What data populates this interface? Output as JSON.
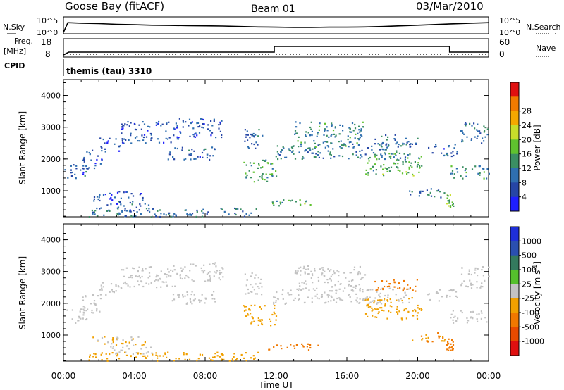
{
  "header": {
    "title": "Goose Bay (fitACF)",
    "beam": "Beam 01",
    "date": "03/Mar/2010",
    "cpid": "themis (tau) 3310"
  },
  "panels": {
    "noise": {
      "left_label": "N.Sky",
      "right_label": "N.Search",
      "left_ticks": [
        "10^5",
        "10^0"
      ],
      "right_ticks": [
        "10^5",
        "10^0"
      ]
    },
    "freq": {
      "left_label_1": "Freq.",
      "left_label_2": "[MHz]",
      "cpid_label": "CPID",
      "right_label": "Nave",
      "left_ticks": [
        "18",
        "8"
      ],
      "right_ticks": [
        "60",
        "0"
      ]
    }
  },
  "colors": {
    "power": [
      "#1f1fff",
      "#2646a6",
      "#2f6fb0",
      "#3b8f63",
      "#5fc22f",
      "#c8dd2a",
      "#f5a800",
      "#f07a00",
      "#e01010"
    ],
    "velocity": [
      "#1f2fd8",
      "#2a4fb0",
      "#347a5e",
      "#55c02c",
      "#c3c3c3",
      "#f0a000",
      "#f07800",
      "#e84a00",
      "#e01010"
    ],
    "ground_scatter": "#c2c2c2"
  },
  "chart_data": [
    {
      "type": "line",
      "name": "noise",
      "x": [
        0.0,
        0.25,
        1,
        2,
        3,
        4,
        5,
        6,
        7,
        8,
        9,
        10,
        11,
        12,
        13,
        14,
        15,
        16,
        17,
        18,
        19,
        20,
        21,
        22,
        23,
        24
      ],
      "series": [
        {
          "values": [
            0.0,
            4.3,
            4.1,
            3.9,
            3.6,
            3.4,
            3.2,
            3.1,
            3.0,
            2.9,
            2.8,
            2.6,
            2.4,
            2.3,
            2.2,
            2.2,
            2.3,
            2.3,
            2.4,
            2.6,
            2.9,
            3.2,
            3.5,
            3.8,
            4.1,
            4.3
          ]
        }
      ]
    },
    {
      "type": "line",
      "name": "frequency",
      "x": [
        0.0,
        0.3,
        11.9,
        11.9,
        21.8,
        21.8,
        24
      ],
      "series": [
        {
          "values": [
            8.0,
            10.0,
            10.0,
            14.0,
            14.0,
            10.0,
            10.0
          ]
        }
      ]
    },
    {
      "type": "heatmap",
      "name": "power",
      "xlabel": "",
      "ylabel": "Slant Range [km]",
      "x_ticks": [
        "00:00",
        "04:00",
        "08:00",
        "12:00",
        "16:00",
        "20:00",
        "00:00"
      ],
      "y_ticks": [
        1000,
        2000,
        3000,
        4000
      ],
      "xlim": [
        0,
        24
      ],
      "ylim": [
        180,
        4500
      ],
      "colorbar": {
        "label": "Power [dB]",
        "ticks": [
          "4",
          "8",
          "12",
          "16",
          "20",
          "24",
          "28"
        ]
      },
      "regions": [
        {
          "t0": 0.0,
          "t1": 1.3,
          "r0": 1400,
          "r1": 1900,
          "v": 7
        },
        {
          "t0": 1.0,
          "t1": 2.2,
          "r0": 1700,
          "r1": 2300,
          "v": 7
        },
        {
          "t0": 2.0,
          "t1": 3.4,
          "r0": 2250,
          "r1": 2700,
          "v": 6
        },
        {
          "t0": 1.6,
          "t1": 4.6,
          "r0": 700,
          "r1": 1000,
          "v": 6
        },
        {
          "t0": 2.4,
          "t1": 5.0,
          "r0": 400,
          "r1": 700,
          "v": 7
        },
        {
          "t0": 1.4,
          "t1": 11.0,
          "r0": 200,
          "r1": 480,
          "v": 9
        },
        {
          "t0": 3.2,
          "t1": 6.6,
          "r0": 2500,
          "r1": 3200,
          "v": 6
        },
        {
          "t0": 5.8,
          "t1": 8.6,
          "r0": 2000,
          "r1": 2400,
          "v": 7
        },
        {
          "t0": 6.5,
          "t1": 9.0,
          "r0": 2700,
          "r1": 3300,
          "v": 6
        },
        {
          "t0": 10.1,
          "t1": 12.0,
          "r0": 1300,
          "r1": 2000,
          "v": 13
        },
        {
          "t0": 10.2,
          "t1": 11.3,
          "r0": 2300,
          "r1": 3000,
          "v": 8
        },
        {
          "t0": 11.5,
          "t1": 14.4,
          "r0": 550,
          "r1": 750,
          "v": 14
        },
        {
          "t0": 11.8,
          "t1": 19.5,
          "r0": 2000,
          "r1": 2500,
          "v": 10
        },
        {
          "t0": 13.0,
          "t1": 17.0,
          "r0": 2400,
          "r1": 3200,
          "v": 11
        },
        {
          "t0": 17.0,
          "t1": 20.2,
          "r0": 1500,
          "r1": 2200,
          "v": 14
        },
        {
          "t0": 17.5,
          "t1": 20.0,
          "r0": 2400,
          "r1": 2800,
          "v": 8
        },
        {
          "t0": 19.5,
          "t1": 21.5,
          "r0": 800,
          "r1": 1100,
          "v": 8
        },
        {
          "t0": 20.5,
          "t1": 22.2,
          "r0": 2100,
          "r1": 2500,
          "v": 7
        },
        {
          "t0": 21.6,
          "t1": 22.0,
          "r0": 500,
          "r1": 900,
          "v": 16
        },
        {
          "t0": 21.8,
          "t1": 24.0,
          "r0": 1400,
          "r1": 1800,
          "v": 11
        },
        {
          "t0": 22.4,
          "t1": 24.0,
          "r0": 2500,
          "r1": 3200,
          "v": 8
        }
      ]
    },
    {
      "type": "heatmap",
      "name": "velocity",
      "xlabel": "Time UT",
      "ylabel": "Slant Range [km]",
      "x_ticks": [
        "00:00",
        "04:00",
        "08:00",
        "12:00",
        "16:00",
        "20:00",
        "00:00"
      ],
      "y_ticks": [
        1000,
        2000,
        3000,
        4000
      ],
      "xlim": [
        0,
        24
      ],
      "ylim": [
        180,
        4500
      ],
      "colorbar": {
        "label": "Velocity  [m s",
        "label_sup": "-1",
        "label_end": "]",
        "ticks": [
          "1000",
          "500",
          "100",
          "25",
          "-25",
          "-100",
          "-500",
          "-1000"
        ]
      },
      "regions": [
        {
          "t0": 0.0,
          "t1": 1.3,
          "r0": 1400,
          "r1": 1900,
          "v": 0
        },
        {
          "t0": 1.0,
          "t1": 2.2,
          "r0": 1700,
          "r1": 2300,
          "v": 0
        },
        {
          "t0": 2.0,
          "t1": 3.4,
          "r0": 2250,
          "r1": 2700,
          "v": 0
        },
        {
          "t0": 1.6,
          "t1": 4.6,
          "r0": 700,
          "r1": 1000,
          "v": -30
        },
        {
          "t0": 2.4,
          "t1": 5.0,
          "r0": 400,
          "r1": 700,
          "v": 0
        },
        {
          "t0": 1.4,
          "t1": 11.0,
          "r0": 200,
          "r1": 480,
          "v": -40
        },
        {
          "t0": 3.2,
          "t1": 6.6,
          "r0": 2500,
          "r1": 3200,
          "v": 0
        },
        {
          "t0": 5.8,
          "t1": 8.6,
          "r0": 2000,
          "r1": 2400,
          "v": 0
        },
        {
          "t0": 6.5,
          "t1": 9.0,
          "r0": 2700,
          "r1": 3300,
          "v": 0
        },
        {
          "t0": 10.1,
          "t1": 12.0,
          "r0": 1300,
          "r1": 2000,
          "v": -60
        },
        {
          "t0": 10.2,
          "t1": 11.3,
          "r0": 2300,
          "r1": 3000,
          "v": 0
        },
        {
          "t0": 11.5,
          "t1": 14.4,
          "r0": 550,
          "r1": 750,
          "v": -150
        },
        {
          "t0": 11.8,
          "t1": 19.5,
          "r0": 2000,
          "r1": 2500,
          "v": 0
        },
        {
          "t0": 13.0,
          "t1": 17.0,
          "r0": 2400,
          "r1": 3200,
          "v": 0
        },
        {
          "t0": 17.0,
          "t1": 20.2,
          "r0": 1500,
          "r1": 2200,
          "v": -80
        },
        {
          "t0": 17.5,
          "t1": 20.0,
          "r0": 2400,
          "r1": 2800,
          "v": -120
        },
        {
          "t0": 19.5,
          "t1": 21.5,
          "r0": 800,
          "r1": 1100,
          "v": -100
        },
        {
          "t0": 20.5,
          "t1": 22.2,
          "r0": 2100,
          "r1": 2500,
          "v": 0
        },
        {
          "t0": 21.6,
          "t1": 22.0,
          "r0": 500,
          "r1": 900,
          "v": -300
        },
        {
          "t0": 21.8,
          "t1": 24.0,
          "r0": 1400,
          "r1": 1800,
          "v": 0
        },
        {
          "t0": 22.4,
          "t1": 24.0,
          "r0": 2500,
          "r1": 3200,
          "v": 0
        }
      ]
    }
  ]
}
